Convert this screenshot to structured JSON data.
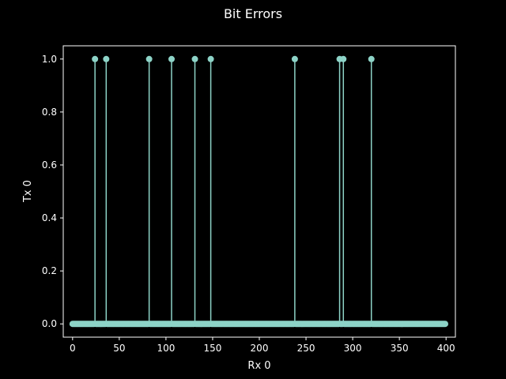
{
  "chart_data": {
    "type": "stem",
    "title": "Bit Errors",
    "xlabel": "Rx 0",
    "ylabel": "Tx 0",
    "xlim": [
      -10,
      410
    ],
    "ylim": [
      -0.05,
      1.05
    ],
    "xticks": [
      0,
      50,
      100,
      150,
      200,
      250,
      300,
      350,
      400
    ],
    "yticks": [
      0.0,
      0.2,
      0.4,
      0.6,
      0.8,
      1.0
    ],
    "xtick_labels": [
      "0",
      "50",
      "100",
      "150",
      "200",
      "250",
      "300",
      "350",
      "400"
    ],
    "ytick_labels": [
      "0.0",
      "0.2",
      "0.4",
      "0.6",
      "0.8",
      "1.0"
    ],
    "n_points": 400,
    "x_start": 0,
    "x_end": 399,
    "baseline": 0,
    "error_indices": [
      24,
      36,
      82,
      106,
      131,
      148,
      238,
      286,
      290,
      320
    ],
    "error_value": 1.0,
    "grid": false,
    "legend": false,
    "colors": {
      "background": "#000000",
      "foreground": "#ffffff",
      "stem": "#8dd3c7",
      "marker": "#8dd3c7",
      "baseline": "#fa8072"
    }
  }
}
